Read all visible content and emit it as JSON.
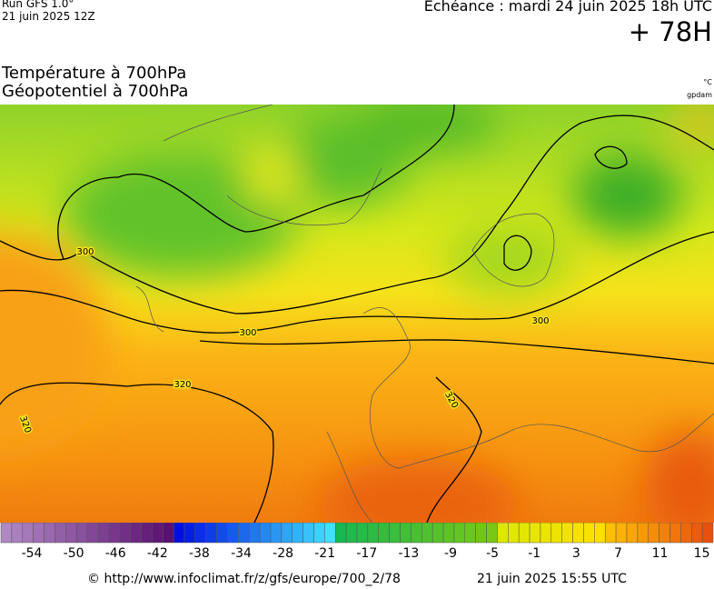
{
  "header": {
    "run": "Run GFS 1.0°",
    "run_date": "21 juin 2025 12Z",
    "echeance": "Echéance : mardi 24 juin 2025 18h UTC",
    "lead": "+ 78H",
    "title1": "Température à 700hPa",
    "title2": "Géopotentiel à 700hPa",
    "unit_temp": "°C",
    "unit_geo": "gpdam"
  },
  "map": {
    "contour_labels": [
      "300",
      "300",
      "300",
      "320",
      "320",
      "320"
    ]
  },
  "colorbar": {
    "labels": [
      "-54",
      "-50",
      "-46",
      "-42",
      "-38",
      "-34",
      "-28",
      "-21",
      "-17",
      "-13",
      "-9",
      "-5",
      "-1",
      "3",
      "7",
      "11",
      "15"
    ]
  },
  "footer": {
    "url": "© http://www.infoclimat.fr/z/gfs/europe/700_2/78",
    "date": "21 juin 2025 15:55 UTC"
  }
}
